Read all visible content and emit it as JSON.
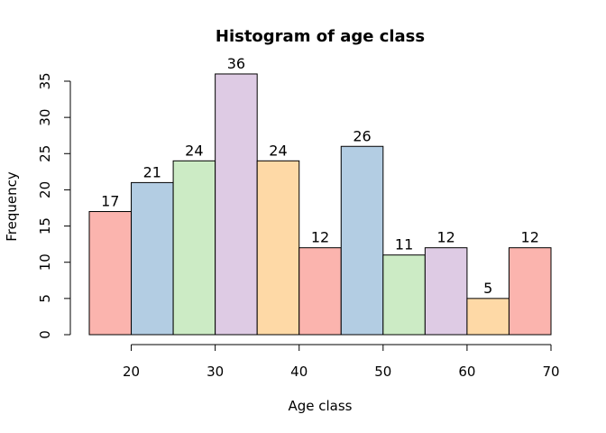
{
  "chart_data": {
    "type": "bar",
    "title": "Histogram of age class",
    "xlabel": "Age class",
    "ylabel": "Frequency",
    "bins": [
      {
        "start": 15,
        "end": 20,
        "value": 17
      },
      {
        "start": 20,
        "end": 25,
        "value": 21
      },
      {
        "start": 25,
        "end": 30,
        "value": 24
      },
      {
        "start": 30,
        "end": 35,
        "value": 36
      },
      {
        "start": 35,
        "end": 40,
        "value": 24
      },
      {
        "start": 40,
        "end": 45,
        "value": 12
      },
      {
        "start": 45,
        "end": 50,
        "value": 26
      },
      {
        "start": 50,
        "end": 55,
        "value": 11
      },
      {
        "start": 55,
        "end": 60,
        "value": 12
      },
      {
        "start": 60,
        "end": 65,
        "value": 5
      },
      {
        "start": 65,
        "end": 70,
        "value": 12
      }
    ],
    "data_labels": [
      "17",
      "21",
      "24",
      "36",
      "24",
      "12",
      "26",
      "11",
      "12",
      "5",
      "12"
    ],
    "x_ticks": [
      "20",
      "30",
      "40",
      "50",
      "60",
      "70"
    ],
    "y_ticks": [
      "0",
      "5",
      "10",
      "15",
      "20",
      "25",
      "30",
      "35"
    ],
    "xlim": [
      15,
      70
    ],
    "ylim": [
      0,
      35
    ],
    "grid": false,
    "legend": "none",
    "colors": [
      "#FBB4AE",
      "#B3CDE3",
      "#CCEBC5",
      "#DECBE4",
      "#FED9A6"
    ]
  }
}
